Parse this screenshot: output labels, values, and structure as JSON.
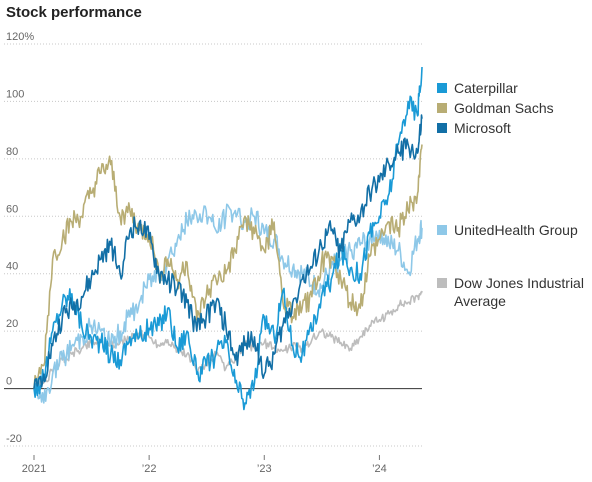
{
  "chart_data": {
    "type": "line",
    "title": "Stock performance",
    "xlabel": "",
    "ylabel": "",
    "ylim": [
      -20,
      120
    ],
    "y_ticks": [
      {
        "value": 120,
        "label": "120%"
      },
      {
        "value": 100,
        "label": "100"
      },
      {
        "value": 80,
        "label": "80"
      },
      {
        "value": 60,
        "label": "60"
      },
      {
        "value": 40,
        "label": "40"
      },
      {
        "value": 20,
        "label": "20"
      },
      {
        "value": 0,
        "label": "0"
      },
      {
        "value": -20,
        "label": "-20"
      }
    ],
    "x_range": [
      "2021-01-01",
      "2024-05-15"
    ],
    "x_ticks": [
      {
        "value": "2021-01-01",
        "label": "2021"
      },
      {
        "value": "2022-01-01",
        "label": "’22"
      },
      {
        "value": "2023-01-01",
        "label": "’23"
      },
      {
        "value": "2024-01-01",
        "label": "’24"
      }
    ],
    "grid": "horizontal dotted, solid zero line",
    "legend": "right",
    "x": [
      "2021-01-01",
      "2021-02-01",
      "2021-03-01",
      "2021-04-01",
      "2021-05-01",
      "2021-06-01",
      "2021-07-01",
      "2021-08-01",
      "2021-09-01",
      "2021-10-01",
      "2021-11-01",
      "2021-12-01",
      "2022-01-01",
      "2022-02-01",
      "2022-03-01",
      "2022-04-01",
      "2022-05-01",
      "2022-06-01",
      "2022-07-01",
      "2022-08-01",
      "2022-09-01",
      "2022-10-01",
      "2022-11-01",
      "2022-12-01",
      "2023-01-01",
      "2023-02-01",
      "2023-03-01",
      "2023-04-01",
      "2023-05-01",
      "2023-06-01",
      "2023-07-01",
      "2023-08-01",
      "2023-09-01",
      "2023-10-01",
      "2023-11-01",
      "2023-12-01",
      "2024-01-01",
      "2024-02-01",
      "2024-03-01",
      "2024-04-01",
      "2024-05-01",
      "2024-05-15"
    ],
    "series": [
      {
        "name": "Caterpillar",
        "color": "#1a9ad6",
        "label_position": "top",
        "values": [
          0,
          3,
          20,
          30,
          33,
          22,
          18,
          16,
          12,
          10,
          18,
          18,
          21,
          22,
          28,
          14,
          20,
          5,
          8,
          12,
          16,
          2,
          -5,
          2,
          25,
          18,
          34,
          15,
          12,
          20,
          32,
          38,
          48,
          42,
          40,
          54,
          60,
          68,
          85,
          100,
          95,
          112
        ]
      },
      {
        "name": "Goldman Sachs",
        "color": "#b8ad74",
        "label_position": "top",
        "values": [
          0,
          8,
          45,
          52,
          58,
          60,
          68,
          75,
          78,
          60,
          62,
          55,
          54,
          40,
          45,
          38,
          44,
          24,
          32,
          38,
          40,
          48,
          60,
          54,
          48,
          58,
          30,
          25,
          28,
          32,
          44,
          46,
          38,
          30,
          28,
          46,
          52,
          58,
          56,
          62,
          68,
          85
        ]
      },
      {
        "name": "Microsoft",
        "color": "#126fa6",
        "label_position": "top",
        "values": [
          0,
          5,
          15,
          25,
          28,
          32,
          38,
          45,
          50,
          40,
          55,
          58,
          52,
          40,
          38,
          35,
          30,
          20,
          25,
          30,
          22,
          10,
          15,
          18,
          5,
          12,
          22,
          30,
          38,
          42,
          50,
          55,
          48,
          58,
          60,
          68,
          72,
          78,
          82,
          85,
          82,
          94
        ]
      },
      {
        "name": "UnitedHealth Group",
        "color": "#8ec8e8",
        "label_position": "middle",
        "values": [
          0,
          -5,
          5,
          10,
          15,
          18,
          22,
          20,
          15,
          20,
          25,
          30,
          38,
          40,
          45,
          52,
          58,
          60,
          62,
          55,
          60,
          62,
          58,
          60,
          54,
          52,
          45,
          42,
          40,
          36,
          35,
          42,
          45,
          48,
          50,
          52,
          55,
          50,
          48,
          40,
          52,
          56
        ]
      },
      {
        "name": "Dow Jones Industrial Average",
        "label_lines": [
          "Dow Jones Industrial",
          "Average"
        ],
        "color": "#bdbdbd",
        "label_position": "bottom",
        "values": [
          0,
          2,
          6,
          10,
          12,
          14,
          16,
          17,
          15,
          16,
          18,
          19,
          18,
          15,
          17,
          13,
          12,
          6,
          9,
          12,
          7,
          10,
          16,
          14,
          16,
          14,
          13,
          15,
          14,
          17,
          20,
          18,
          16,
          14,
          18,
          22,
          24,
          26,
          29,
          30,
          32,
          34
        ]
      }
    ]
  }
}
